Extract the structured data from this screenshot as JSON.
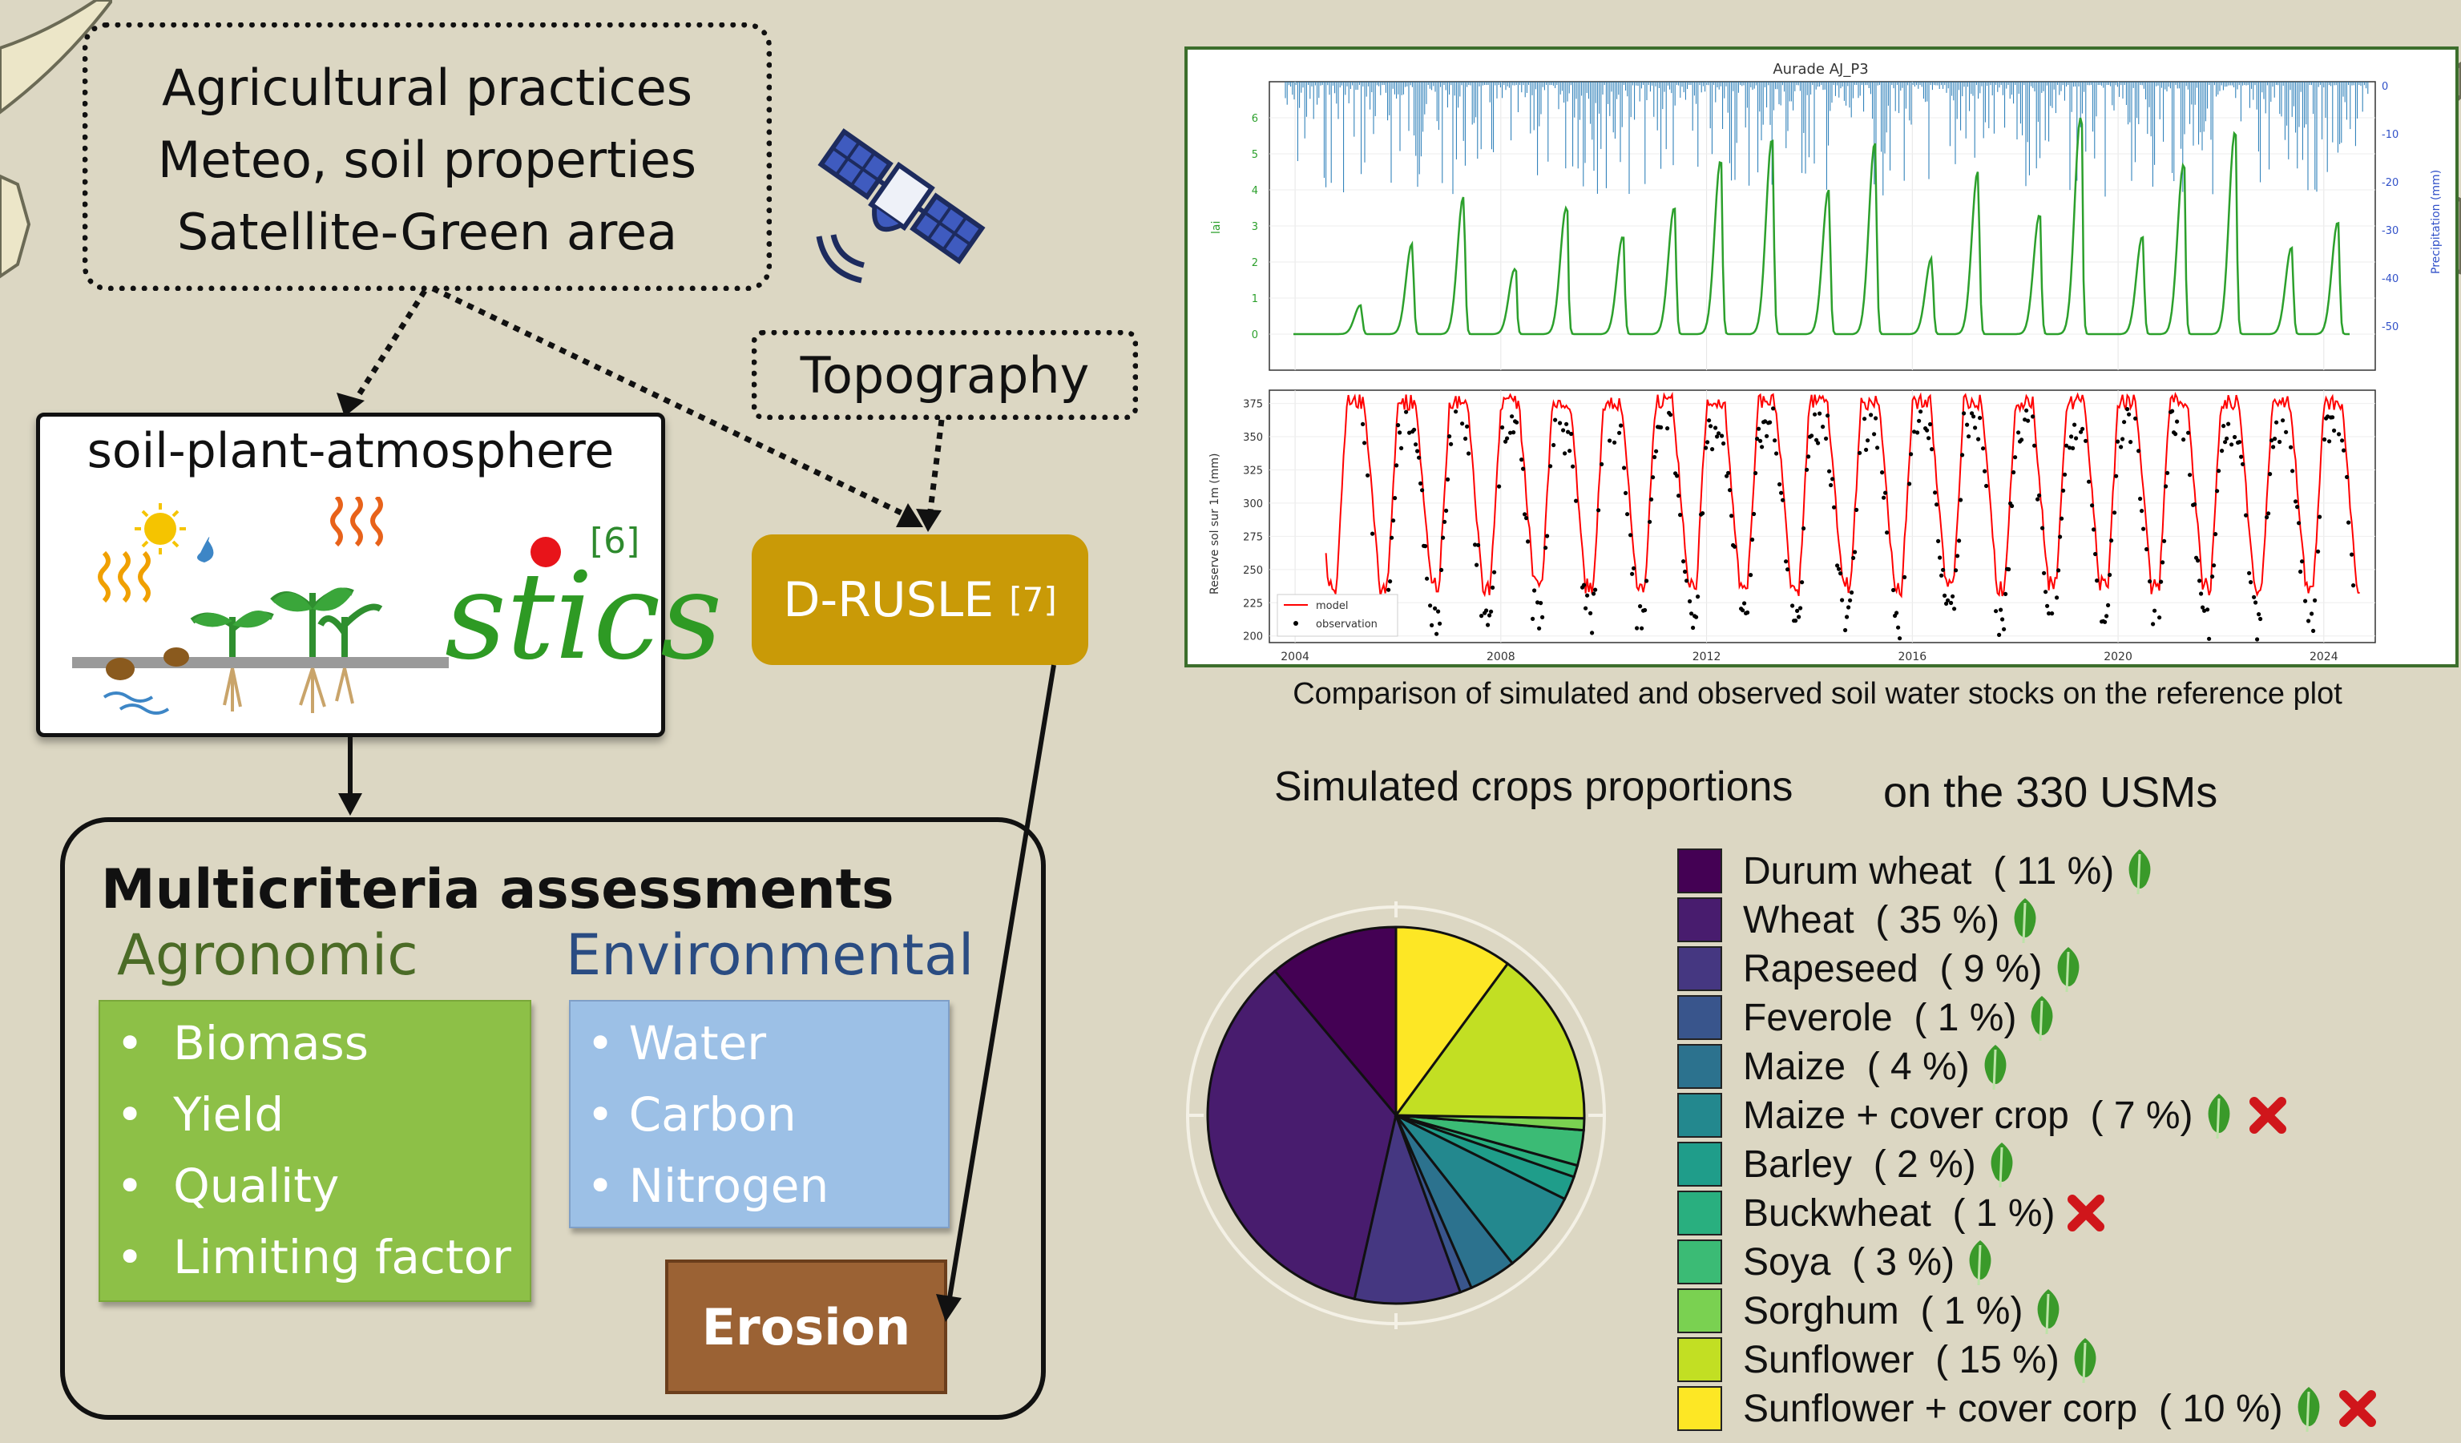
{
  "inputs": {
    "lines": [
      "Agricultural practices",
      "Meteo, soil properties",
      "Satellite-Green area"
    ]
  },
  "topography": "Topography",
  "stics": {
    "title": "soil-plant-atmosphere",
    "ref": "[6]",
    "logo_text": "stics"
  },
  "drusle": {
    "label": "D-RUSLE",
    "ref": "[7]"
  },
  "multicriteria": {
    "title": "Multicriteria assessments",
    "agronomic": {
      "heading": "Agronomic",
      "items": [
        "Biomass",
        "Yield",
        "Quality",
        "Limiting factor"
      ]
    },
    "environmental": {
      "heading": "Environmental",
      "items": [
        "Water",
        "Carbon",
        "Nitrogen"
      ]
    },
    "erosion": "Erosion"
  },
  "plot": {
    "top_title": "Aurade AJ_P3",
    "top_ylabel": "lai",
    "top_right_label": "Precipitation (mm)",
    "top_yticks": [
      "6",
      "5",
      "4",
      "3",
      "2",
      "1",
      "0"
    ],
    "top_right_ticks": [
      "0",
      "-10",
      "-20",
      "-30",
      "-40",
      "-50"
    ],
    "bottom_ylabel": "Reserve sol sur 1m (mm)",
    "bottom_yticks": [
      "375",
      "350",
      "325",
      "300",
      "275",
      "250",
      "225",
      "200"
    ],
    "xticks": [
      "2004",
      "2008",
      "2012",
      "2016",
      "2020",
      "2024"
    ],
    "legend": [
      "model",
      "observation"
    ],
    "caption": "Comparison of simulated and observed soil water stocks on the reference plot"
  },
  "pie_title_part1": "Simulated crops proportions",
  "pie_title_part2": "on the 330 USMs",
  "chart_data": {
    "type": "pie",
    "slices": [
      {
        "label": "Durum wheat",
        "pct_label": "( 11 %)",
        "value": 11,
        "color": "#440154",
        "leaf": true,
        "cross": false
      },
      {
        "label": "Wheat",
        "pct_label": "( 35 %)",
        "value": 35,
        "color": "#481c6e",
        "leaf": true,
        "cross": false
      },
      {
        "label": "Rapeseed",
        "pct_label": "( 9 %)",
        "value": 9,
        "color": "#453781",
        "leaf": true,
        "cross": false
      },
      {
        "label": "Feverole",
        "pct_label": "( 1 %)",
        "value": 1,
        "color": "#39558c",
        "leaf": true,
        "cross": false
      },
      {
        "label": "Maize",
        "pct_label": "( 4 %)",
        "value": 4,
        "color": "#2c728e",
        "leaf": true,
        "cross": false
      },
      {
        "label": "Maize + cover crop",
        "pct_label": "( 7 %)",
        "value": 7,
        "color": "#23888e",
        "leaf": true,
        "cross": true
      },
      {
        "label": "Barley",
        "pct_label": "( 2 %)",
        "value": 2,
        "color": "#1f9d8a",
        "leaf": true,
        "cross": false
      },
      {
        "label": "Buckwheat",
        "pct_label": "( 1 %)",
        "value": 1,
        "color": "#29af7f",
        "leaf": false,
        "cross": true
      },
      {
        "label": "Soya",
        "pct_label": "( 3 %)",
        "value": 3,
        "color": "#3bbb75",
        "leaf": true,
        "cross": false
      },
      {
        "label": "Sorghum",
        "pct_label": "( 1 %)",
        "value": 1,
        "color": "#7ad151",
        "leaf": true,
        "cross": false
      },
      {
        "label": "Sunflower",
        "pct_label": "( 15 %)",
        "value": 15,
        "color": "#c2df23",
        "leaf": true,
        "cross": false
      },
      {
        "label": "Sunflower + cover corp",
        "pct_label": "( 10 %)",
        "value": 10,
        "color": "#fde725",
        "leaf": true,
        "cross": true
      }
    ]
  },
  "colors": {
    "background": "#dcd7c3",
    "drusle": "#c99a07",
    "agronomic": "#8dc047",
    "environmental": "#9cc0e6",
    "erosion": "#9b6234",
    "model": "#ff0000",
    "lai": "#2ca02c",
    "precip": "#1f77b4"
  }
}
